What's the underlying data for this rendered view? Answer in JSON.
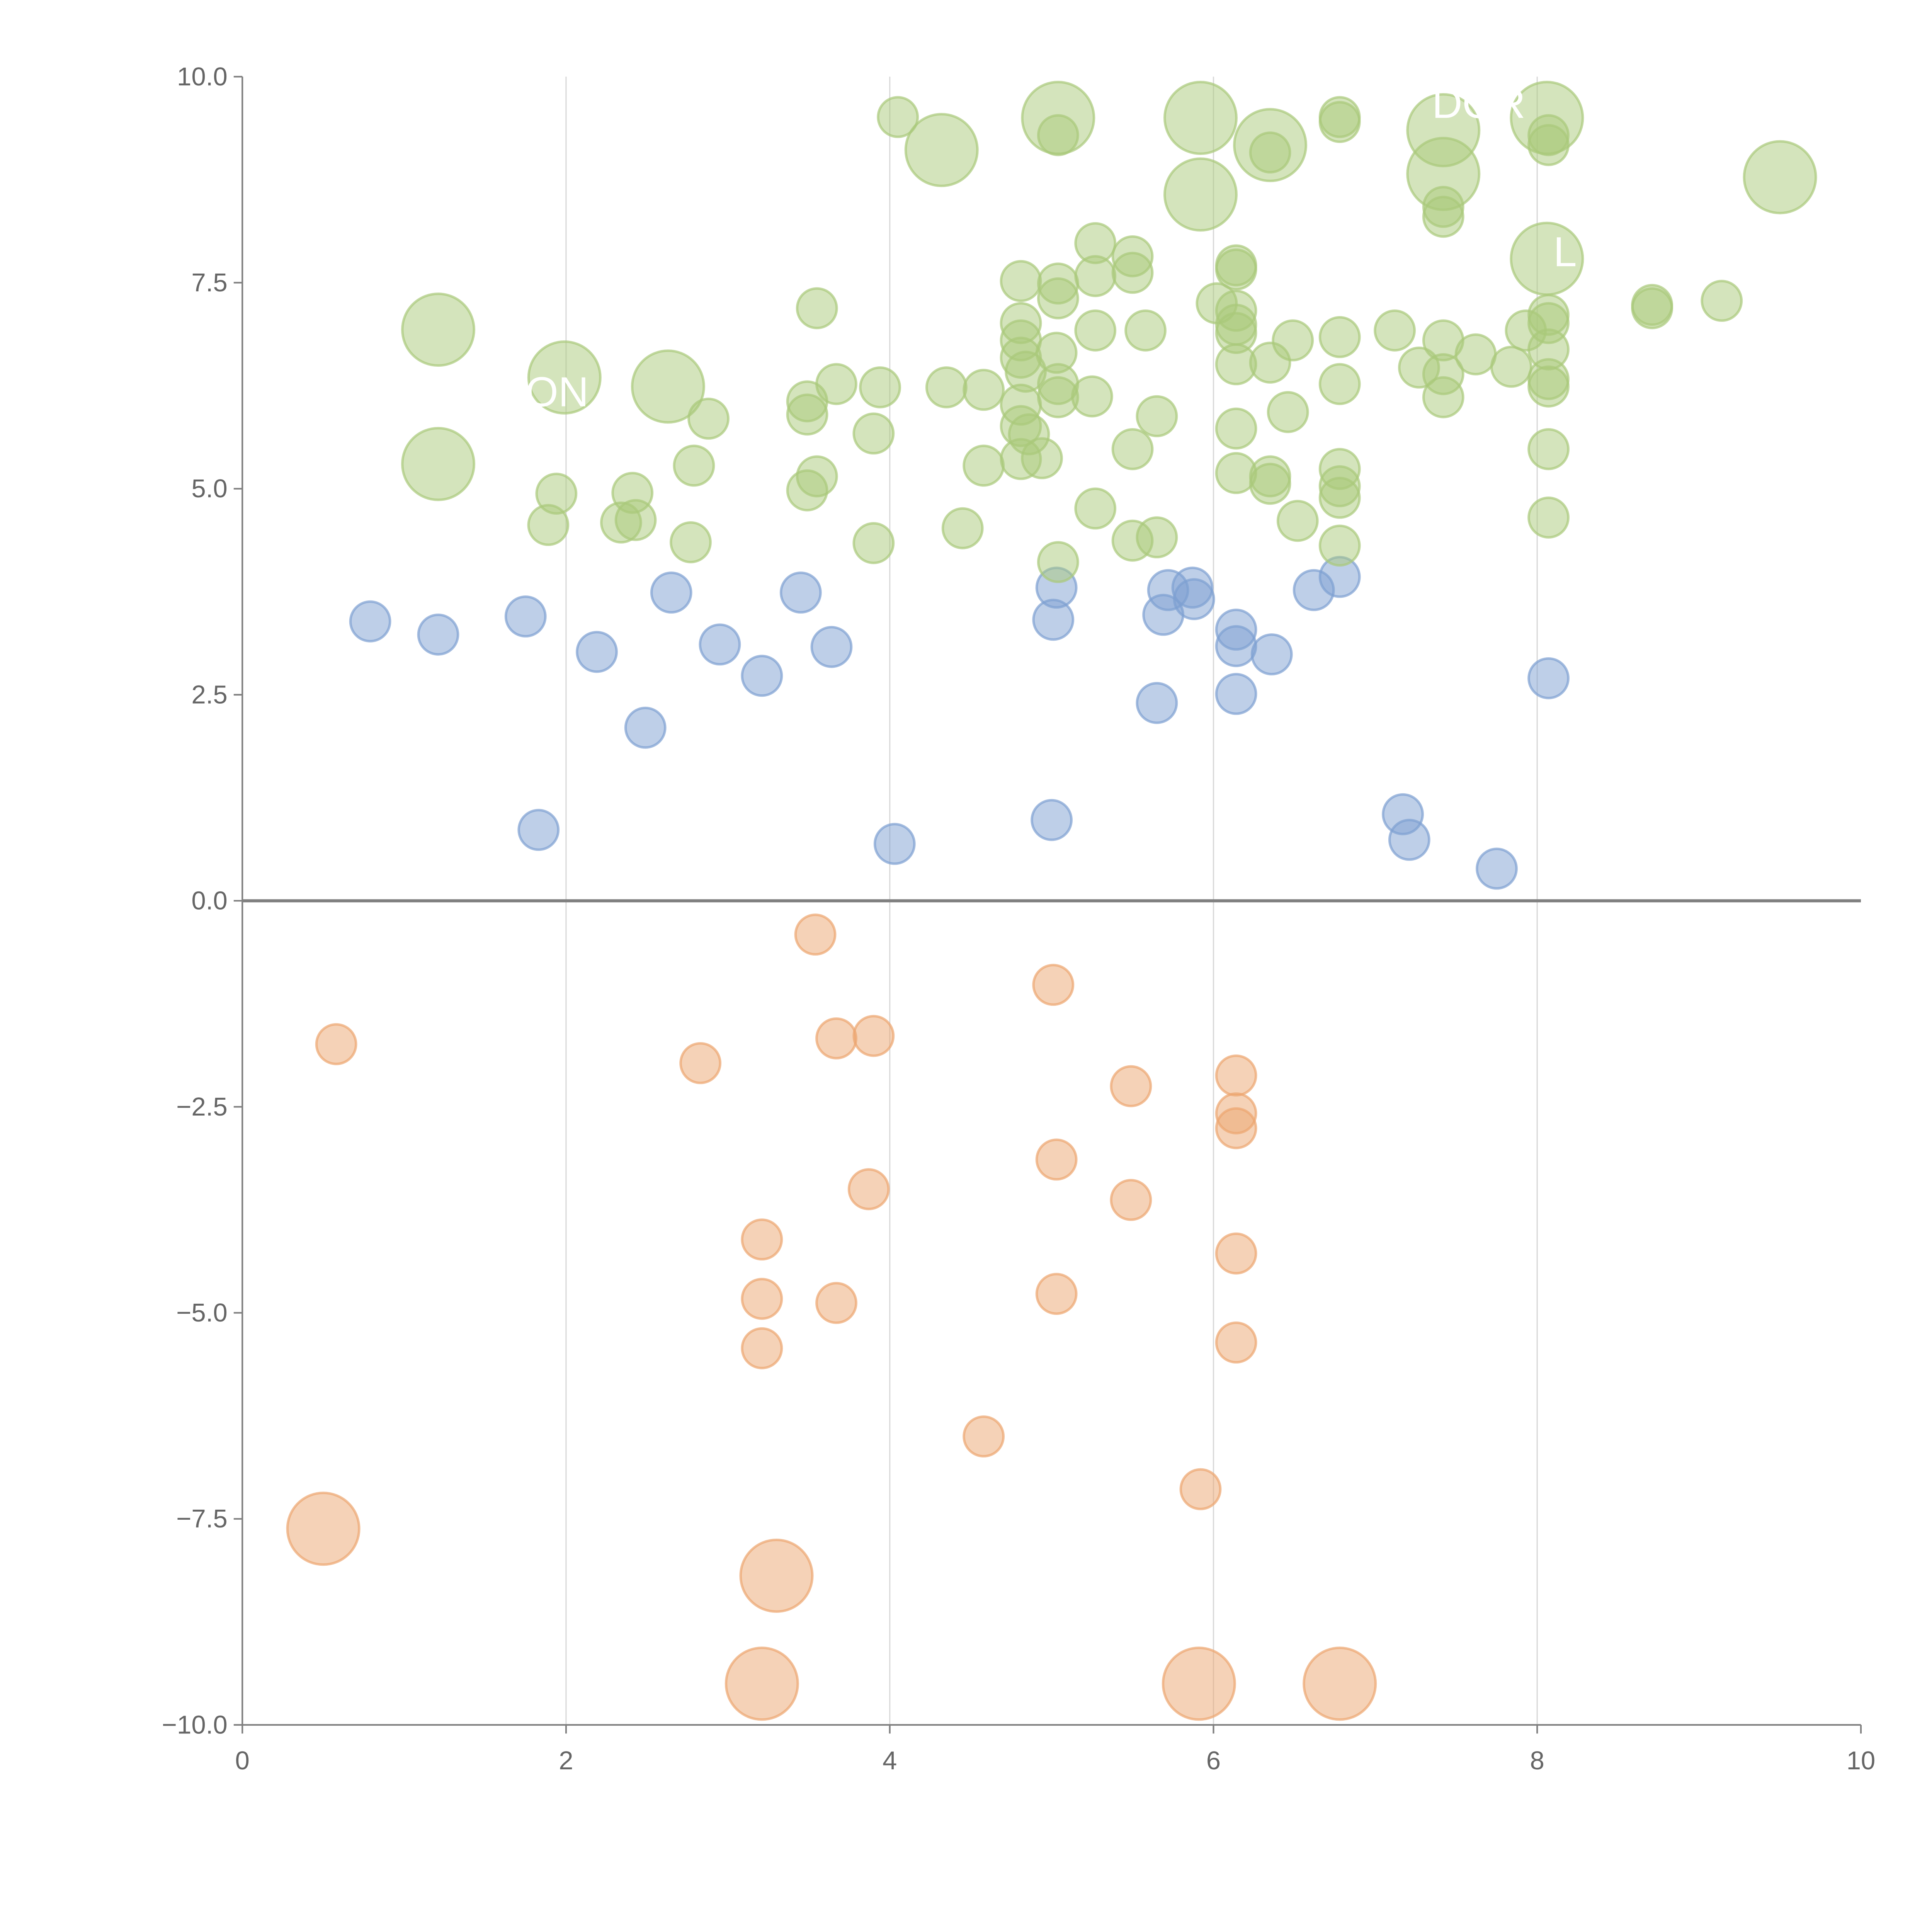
{
  "chart_data": {
    "type": "scatter",
    "title": "",
    "xlabel": "",
    "ylabel": "",
    "xlim": [
      0,
      10
    ],
    "ylim": [
      -10,
      10
    ],
    "grid": "vertical",
    "xticks": [
      "0",
      "2",
      "4",
      "6",
      "8",
      "10"
    ],
    "xtick_values": [
      0,
      2,
      4,
      6,
      8,
      10
    ],
    "yticks": [
      "10.0",
      "7.5",
      "5.0",
      "2.5",
      "0.0",
      "−2.5",
      "−5.0",
      "−7.5",
      "−10.0"
    ],
    "ytick_values": [
      10,
      7.5,
      5,
      2.5,
      0,
      -2.5,
      -5,
      -7.5,
      -10
    ],
    "colors": {
      "blue": "#7e9fd2",
      "orange": "#eca56f",
      "green": "#a9c97a",
      "axis": "#808080",
      "grid": "#d9d9d9"
    },
    "annotations": [
      {
        "text": "DOR",
        "x": 7.35,
        "y": 9.5
      },
      {
        "text": "ON",
        "x": 1.75,
        "y": 6.0
      },
      {
        "text": "L",
        "x": 8.1,
        "y": 7.7
      }
    ],
    "series": [
      {
        "name": "blue",
        "color": "blue",
        "points": [
          [
            0.79,
            3.39,
            1
          ],
          [
            1.21,
            3.23,
            1
          ],
          [
            1.75,
            3.45,
            1
          ],
          [
            1.83,
            0.86,
            1
          ],
          [
            2.19,
            3.02,
            1
          ],
          [
            2.49,
            2.1,
            1
          ],
          [
            2.65,
            3.74,
            1
          ],
          [
            2.95,
            3.11,
            1
          ],
          [
            3.21,
            2.73,
            1
          ],
          [
            3.45,
            3.74,
            1
          ],
          [
            3.64,
            3.08,
            1
          ],
          [
            4.03,
            0.69,
            1
          ],
          [
            5.0,
            0.98,
            1
          ],
          [
            5.01,
            3.41,
            1
          ],
          [
            5.03,
            3.8,
            1
          ],
          [
            5.65,
            2.4,
            1
          ],
          [
            5.69,
            3.47,
            1
          ],
          [
            5.72,
            3.77,
            1
          ],
          [
            5.87,
            3.8,
            1
          ],
          [
            5.88,
            3.66,
            1
          ],
          [
            6.14,
            3.29,
            1
          ],
          [
            6.14,
            3.09,
            1
          ],
          [
            6.14,
            2.51,
            1
          ],
          [
            6.36,
            2.99,
            1
          ],
          [
            6.62,
            3.77,
            1
          ],
          [
            6.78,
            3.93,
            1
          ],
          [
            7.17,
            1.05,
            1
          ],
          [
            7.21,
            0.74,
            1
          ],
          [
            7.75,
            0.39,
            1
          ],
          [
            8.07,
            2.7,
            1
          ]
        ]
      },
      {
        "name": "orange",
        "color": "orange",
        "points": [
          [
            0.58,
            -1.74,
            1
          ],
          [
            0.5,
            -7.62,
            2
          ],
          [
            2.83,
            -1.97,
            1
          ],
          [
            3.21,
            -4.11,
            1
          ],
          [
            3.21,
            -4.83,
            1
          ],
          [
            3.21,
            -5.43,
            1
          ],
          [
            3.21,
            -9.5,
            2
          ],
          [
            3.3,
            -8.19,
            2
          ],
          [
            3.54,
            -0.41,
            1
          ],
          [
            3.67,
            -1.67,
            1
          ],
          [
            3.9,
            -1.64,
            1
          ],
          [
            3.87,
            -3.5,
            1
          ],
          [
            3.67,
            -4.88,
            1
          ],
          [
            4.58,
            -6.5,
            1
          ],
          [
            5.01,
            -1.02,
            1
          ],
          [
            5.03,
            -3.14,
            1
          ],
          [
            5.03,
            -4.77,
            1
          ],
          [
            5.49,
            -2.25,
            1
          ],
          [
            5.49,
            -3.63,
            1
          ],
          [
            5.92,
            -7.14,
            1
          ],
          [
            5.91,
            -9.5,
            2
          ],
          [
            6.14,
            -2.12,
            1
          ],
          [
            6.14,
            -2.58,
            1
          ],
          [
            6.14,
            -2.76,
            1
          ],
          [
            6.14,
            -4.28,
            1
          ],
          [
            6.14,
            -5.36,
            1
          ],
          [
            6.78,
            -9.5,
            2
          ]
        ]
      },
      {
        "name": "green",
        "color": "green",
        "points": [
          [
            1.21,
            6.93,
            2
          ],
          [
            1.21,
            5.3,
            2
          ],
          [
            1.99,
            6.35,
            2
          ],
          [
            2.63,
            6.24,
            2
          ],
          [
            4.32,
            9.11,
            2
          ],
          [
            5.04,
            9.5,
            2
          ],
          [
            5.92,
            9.5,
            2
          ],
          [
            5.92,
            8.57,
            2
          ],
          [
            6.35,
            9.17,
            2
          ],
          [
            7.42,
            9.35,
            2
          ],
          [
            7.42,
            8.82,
            2
          ],
          [
            8.06,
            9.5,
            2
          ],
          [
            8.06,
            7.79,
            2
          ],
          [
            9.5,
            8.78,
            2
          ],
          [
            1.89,
            4.56,
            1
          ],
          [
            1.94,
            4.94,
            1
          ],
          [
            2.34,
            4.59,
            1
          ],
          [
            2.41,
            4.95,
            1
          ],
          [
            2.43,
            4.62,
            1
          ],
          [
            2.77,
            4.35,
            1
          ],
          [
            2.79,
            5.28,
            1
          ],
          [
            2.88,
            5.85,
            1
          ],
          [
            3.49,
            4.98,
            1
          ],
          [
            3.49,
            5.9,
            1
          ],
          [
            3.49,
            6.06,
            1
          ],
          [
            3.55,
            5.15,
            1
          ],
          [
            3.55,
            7.19,
            1
          ],
          [
            3.67,
            6.27,
            1
          ],
          [
            3.9,
            5.67,
            1
          ],
          [
            3.9,
            4.34,
            1
          ],
          [
            3.94,
            6.23,
            1
          ],
          [
            4.05,
            9.51,
            1
          ],
          [
            4.35,
            6.23,
            1
          ],
          [
            4.45,
            4.52,
            1
          ],
          [
            4.58,
            5.28,
            1
          ],
          [
            4.58,
            6.2,
            1
          ],
          [
            4.81,
            7.52,
            1
          ],
          [
            4.81,
            7.01,
            1
          ],
          [
            4.81,
            6.8,
            1
          ],
          [
            4.81,
            6.59,
            1
          ],
          [
            4.84,
            6.42,
            1
          ],
          [
            4.81,
            6.02,
            1
          ],
          [
            4.81,
            5.76,
            1
          ],
          [
            4.86,
            5.66,
            1
          ],
          [
            4.81,
            5.36,
            1
          ],
          [
            4.94,
            5.37,
            1
          ],
          [
            5.04,
            7.49,
            1
          ],
          [
            5.04,
            7.31,
            1
          ],
          [
            5.03,
            6.65,
            1
          ],
          [
            5.04,
            6.27,
            1
          ],
          [
            5.04,
            6.11,
            1
          ],
          [
            5.04,
            9.29,
            1
          ],
          [
            5.04,
            4.11,
            1
          ],
          [
            5.27,
            7.98,
            1
          ],
          [
            5.27,
            7.58,
            1
          ],
          [
            5.27,
            6.92,
            1
          ],
          [
            5.25,
            6.12,
            1
          ],
          [
            5.27,
            4.76,
            1
          ],
          [
            5.5,
            7.82,
            1
          ],
          [
            5.5,
            7.62,
            1
          ],
          [
            5.58,
            6.92,
            1
          ],
          [
            5.5,
            5.48,
            1
          ],
          [
            5.65,
            5.88,
            1
          ],
          [
            5.5,
            4.37,
            1
          ],
          [
            5.65,
            4.41,
            1
          ],
          [
            6.02,
            7.25,
            1
          ],
          [
            6.14,
            7.71,
            1
          ],
          [
            6.14,
            7.66,
            1
          ],
          [
            6.14,
            7.16,
            1
          ],
          [
            6.14,
            6.99,
            1
          ],
          [
            6.14,
            6.89,
            1
          ],
          [
            6.14,
            6.51,
            1
          ],
          [
            6.14,
            5.73,
            1
          ],
          [
            6.14,
            5.19,
            1
          ],
          [
            6.35,
            6.53,
            1
          ],
          [
            6.35,
            9.08,
            1
          ],
          [
            6.35,
            5.15,
            1
          ],
          [
            6.35,
            5.06,
            1
          ],
          [
            6.46,
            5.93,
            1
          ],
          [
            6.49,
            6.8,
            1
          ],
          [
            6.52,
            4.61,
            1
          ],
          [
            6.78,
            9.51,
            1
          ],
          [
            6.78,
            9.45,
            1
          ],
          [
            6.78,
            6.84,
            1
          ],
          [
            6.78,
            6.27,
            1
          ],
          [
            6.78,
            5.24,
            1
          ],
          [
            6.78,
            5.03,
            1
          ],
          [
            6.78,
            4.89,
            1
          ],
          [
            6.78,
            4.31,
            1
          ],
          [
            7.12,
            6.92,
            1
          ],
          [
            7.27,
            6.47,
            1
          ],
          [
            7.42,
            8.3,
            1
          ],
          [
            7.42,
            8.42,
            1
          ],
          [
            7.42,
            6.8,
            1
          ],
          [
            7.42,
            6.39,
            1
          ],
          [
            7.42,
            6.11,
            1
          ],
          [
            7.62,
            6.63,
            1
          ],
          [
            7.84,
            6.48,
            1
          ],
          [
            7.93,
            6.92,
            1
          ],
          [
            8.07,
            9.29,
            1
          ],
          [
            8.07,
            9.17,
            1
          ],
          [
            8.07,
            7.11,
            1
          ],
          [
            8.07,
            7.01,
            1
          ],
          [
            8.07,
            6.69,
            1
          ],
          [
            8.07,
            6.33,
            1
          ],
          [
            8.07,
            6.24,
            1
          ],
          [
            8.07,
            5.48,
            1
          ],
          [
            8.07,
            4.65,
            1
          ],
          [
            8.71,
            7.23,
            1
          ],
          [
            8.71,
            7.19,
            1
          ],
          [
            9.14,
            7.28,
            1
          ]
        ]
      }
    ]
  }
}
